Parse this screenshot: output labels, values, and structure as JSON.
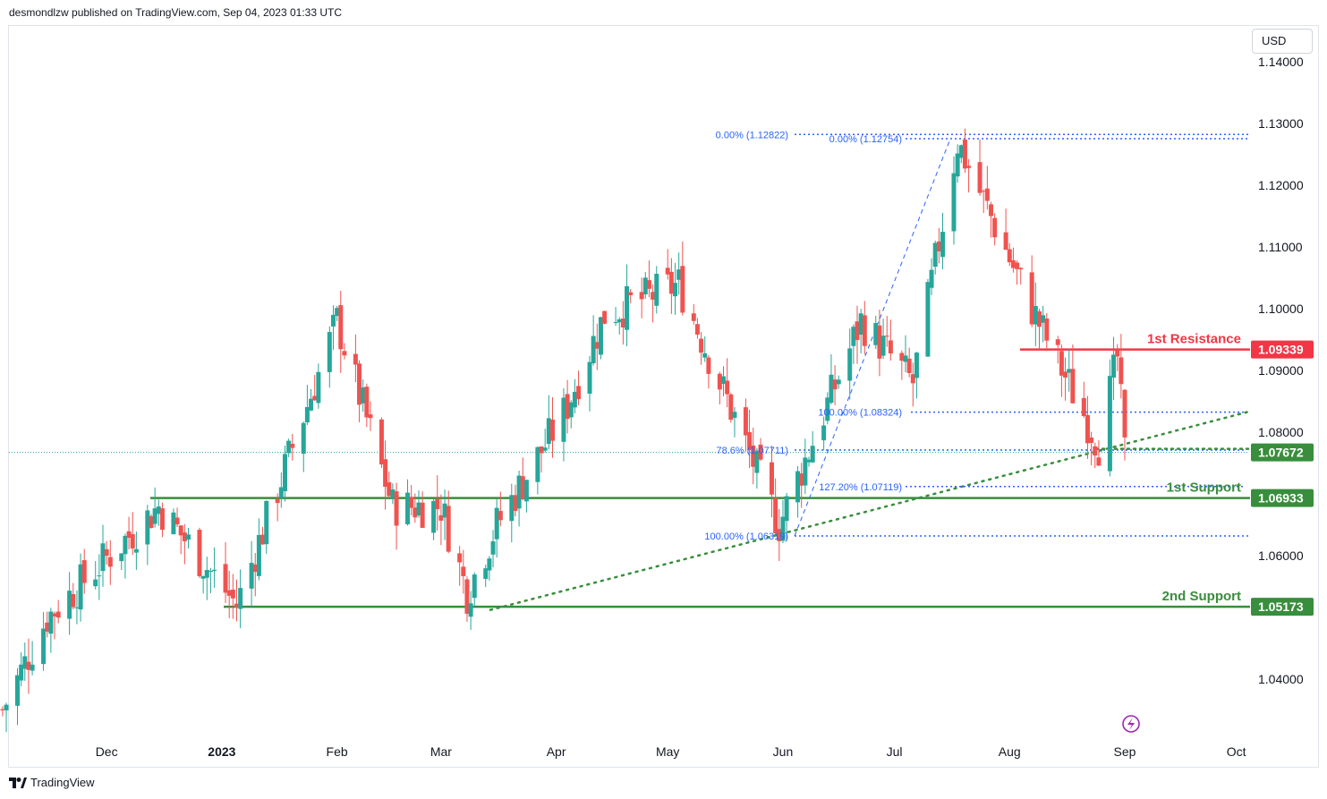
{
  "header": {
    "published": "desmondlzw published on TradingView.com, Sep 04, 2023 01:33 UTC"
  },
  "currency": "USD",
  "footer": {
    "brand": "TradingView"
  },
  "colors": {
    "bull": "#26a69a",
    "bear": "#ef5350",
    "support": "#388e3c",
    "resistance": "#f23645",
    "fib": "#2962ff"
  },
  "chart_data": {
    "type": "candlestick",
    "y_ticks": [
      "1.14000",
      "1.13000",
      "1.12000",
      "1.11000",
      "1.10000",
      "1.09000",
      "1.08000",
      "1.06000",
      "1.04000"
    ],
    "x_ticks": [
      "Dec",
      "2023",
      "Feb",
      "Mar",
      "Apr",
      "May",
      "Jun",
      "Jul",
      "Aug",
      "Sep",
      "Oct"
    ],
    "price_tags": [
      {
        "label": "1.09339",
        "value": 1.09339,
        "color": "#f23645"
      },
      {
        "label": "1.07672",
        "value": 1.07672,
        "color": "#388e3c"
      },
      {
        "label": "1.06933",
        "value": 1.06933,
        "color": "#388e3c"
      },
      {
        "label": "1.05173",
        "value": 1.05173,
        "color": "#388e3c"
      }
    ],
    "levels": [
      {
        "name": "1st Resistance",
        "value": 1.09339,
        "color": "#f23645"
      },
      {
        "name": "1st Support",
        "value": 1.06933,
        "color": "#388e3c"
      },
      {
        "name": "2nd Support",
        "value": 1.05173,
        "color": "#388e3c"
      }
    ],
    "fib_labels": [
      {
        "text": "0.00% (1.12822)",
        "value": 1.12822
      },
      {
        "text": "0.00% (1.12754)",
        "value": 1.12754
      },
      {
        "text": "100.00% (1.08324)",
        "value": 1.08324
      },
      {
        "text": "78.6% (1.07711)",
        "value": 1.07711
      },
      {
        "text": "127.20% (1.07119)",
        "value": 1.07119
      },
      {
        "text": "100.00% (1.06319)",
        "value": 1.06319
      }
    ],
    "pivots": [
      {
        "date": "2022-11-03",
        "price": 1.035
      },
      {
        "date": "2022-11-15",
        "price": 1.05
      },
      {
        "date": "2022-12-15",
        "price": 1.068
      },
      {
        "date": "2023-01-05",
        "price": 1.052
      },
      {
        "date": "2023-02-01",
        "price": 1.098
      },
      {
        "date": "2023-02-16",
        "price": 1.068
      },
      {
        "date": "2023-03-01",
        "price": 1.068
      },
      {
        "date": "2023-03-08",
        "price": 1.054
      },
      {
        "date": "2023-03-16",
        "price": 1.065
      },
      {
        "date": "2023-04-03",
        "price": 1.083
      },
      {
        "date": "2023-04-14",
        "price": 1.099
      },
      {
        "date": "2023-05-04",
        "price": 1.104
      },
      {
        "date": "2023-05-31",
        "price": 1.065
      },
      {
        "date": "2023-06-22",
        "price": 1.098
      },
      {
        "date": "2023-07-06",
        "price": 1.088
      },
      {
        "date": "2023-07-18",
        "price": 1.127
      },
      {
        "date": "2023-08-07",
        "price": 1.1
      },
      {
        "date": "2023-08-25",
        "price": 1.078
      },
      {
        "date": "2023-08-30",
        "price": 1.092
      },
      {
        "date": "2023-09-01",
        "price": 1.0767
      }
    ]
  }
}
